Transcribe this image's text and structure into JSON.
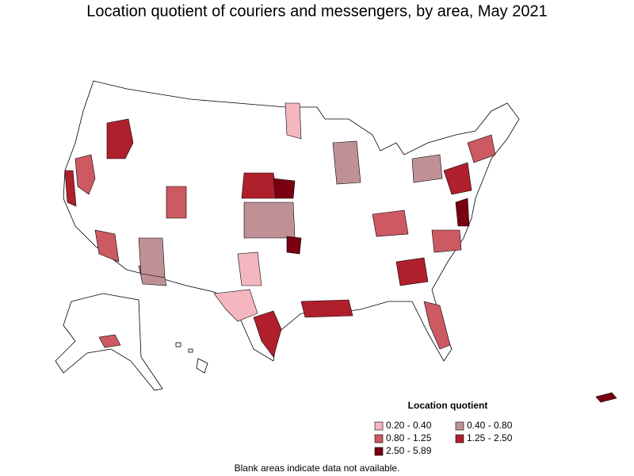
{
  "title": "Location quotient of couriers and messengers, by area, May 2021",
  "legend": {
    "title": "Location quotient",
    "items": [
      {
        "label": "0.20 - 0.40",
        "color": "#f4b6bf"
      },
      {
        "label": "0.40 - 0.80",
        "color": "#bf9196"
      },
      {
        "label": "0.80 - 1.25",
        "color": "#cd5a63"
      },
      {
        "label": "1.25 - 2.50",
        "color": "#b01f2c"
      },
      {
        "label": "2.50 - 5.89",
        "color": "#780010"
      }
    ]
  },
  "note": "Blank areas indicate data not available."
}
